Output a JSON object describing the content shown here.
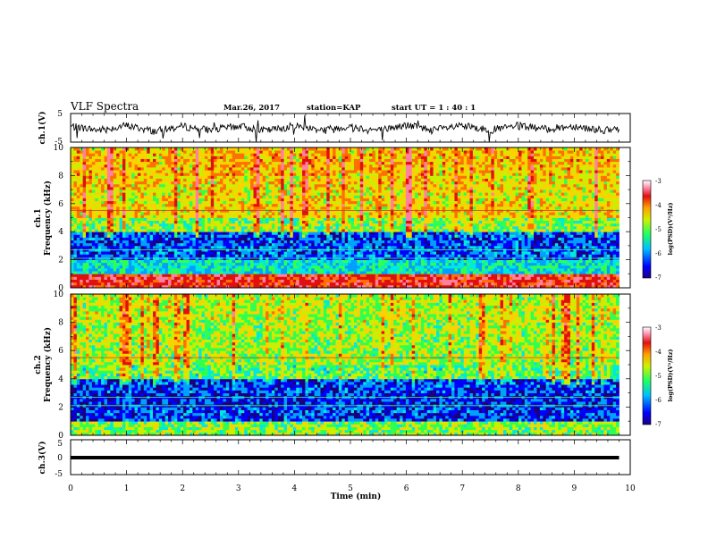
{
  "header": {
    "title": "VLF Spectra",
    "date": "Mar.26, 2017",
    "station": "station=KAP",
    "start_ut": "start UT =  1 : 40 : 1"
  },
  "panels": {
    "ch1_wave": {
      "ylabel": "ch.1(V)",
      "ytick_top": "5",
      "ytick_bottom": "-5"
    },
    "ch1_spec": {
      "ylabel_line1": "ch.1",
      "ylabel_line2": "Frequency (kHz)",
      "yticks": [
        "0",
        "2",
        "4",
        "6",
        "8",
        "10"
      ]
    },
    "ch2_spec": {
      "ylabel_line1": "ch.2",
      "ylabel_line2": "Frequency (kHz)",
      "yticks": [
        "0",
        "2",
        "4",
        "6",
        "8",
        "10"
      ]
    },
    "ch3_wave": {
      "ylabel": "ch.3(V)",
      "yticks": [
        "5",
        "0",
        "-5"
      ]
    }
  },
  "xaxis": {
    "label": "Time (min)",
    "ticks": [
      "0",
      "1",
      "2",
      "3",
      "4",
      "5",
      "6",
      "7",
      "8",
      "9",
      "10"
    ]
  },
  "colorbar": {
    "label": "log(PSD)(V²/Hz)",
    "ticks": [
      "-3",
      "-4",
      "-5",
      "-6",
      "-7"
    ]
  },
  "chart_data": [
    {
      "type": "line",
      "name": "ch1_waveform",
      "xlabel": "Time (min)",
      "ylabel": "ch.1(V)",
      "xlim": [
        0,
        10
      ],
      "ylim": [
        -5,
        5
      ],
      "x": [
        0,
        0.5,
        1,
        1.5,
        2,
        2.5,
        3,
        3.5,
        4,
        4.5,
        5,
        5.5,
        6,
        6.5,
        7,
        7.5,
        8,
        8.5,
        9,
        9.5,
        9.8
      ],
      "values": [
        0.5,
        -0.8,
        0.8,
        -1.2,
        0.5,
        -0.8,
        0.6,
        -1.0,
        0.7,
        -0.6,
        0.4,
        -0.9,
        0.9,
        -0.7,
        0.6,
        -0.8,
        0.7,
        -0.5,
        0.6,
        -0.9,
        -0.8
      ]
    },
    {
      "type": "heatmap",
      "name": "ch1_spectrogram",
      "xlabel": "Time (min)",
      "ylabel": "Frequency (kHz)",
      "xlim": [
        0,
        10
      ],
      "ylim": [
        0,
        10
      ],
      "colorbar_range": [
        -7,
        -3
      ],
      "colormap": [
        "#1a0080",
        "#0000ff",
        "#00a0ff",
        "#00e8e0",
        "#30ff50",
        "#c8f000",
        "#ffd000",
        "#ff7000",
        "#e01010",
        "#ff80a0",
        "#ffffff"
      ],
      "frequency_bands_kHz": [
        0,
        1,
        2,
        3,
        4,
        5,
        6,
        7,
        8,
        9,
        10
      ],
      "mean_log_psd": [
        -3.6,
        -5.6,
        -6.2,
        -6.3,
        -5.0,
        -4.5,
        -4.6,
        -4.5,
        -4.4,
        -4.4
      ]
    },
    {
      "type": "heatmap",
      "name": "ch2_spectrogram",
      "xlabel": "Time (min)",
      "ylabel": "Frequency (kHz)",
      "xlim": [
        0,
        10
      ],
      "ylim": [
        0,
        10
      ],
      "colorbar_range": [
        -7,
        -3
      ],
      "frequency_bands_kHz": [
        0,
        1,
        2,
        3,
        4,
        5,
        6,
        7,
        8,
        9,
        10
      ],
      "mean_log_psd": [
        -5.0,
        -6.3,
        -6.4,
        -6.3,
        -5.2,
        -4.9,
        -4.9,
        -4.9,
        -4.8,
        -4.8
      ]
    },
    {
      "type": "line",
      "name": "ch3_waveform",
      "xlabel": "Time (min)",
      "ylabel": "ch.3(V)",
      "xlim": [
        0,
        10
      ],
      "ylim": [
        -5,
        5
      ],
      "x": [
        0,
        9.8
      ],
      "values": [
        0,
        0
      ]
    }
  ]
}
